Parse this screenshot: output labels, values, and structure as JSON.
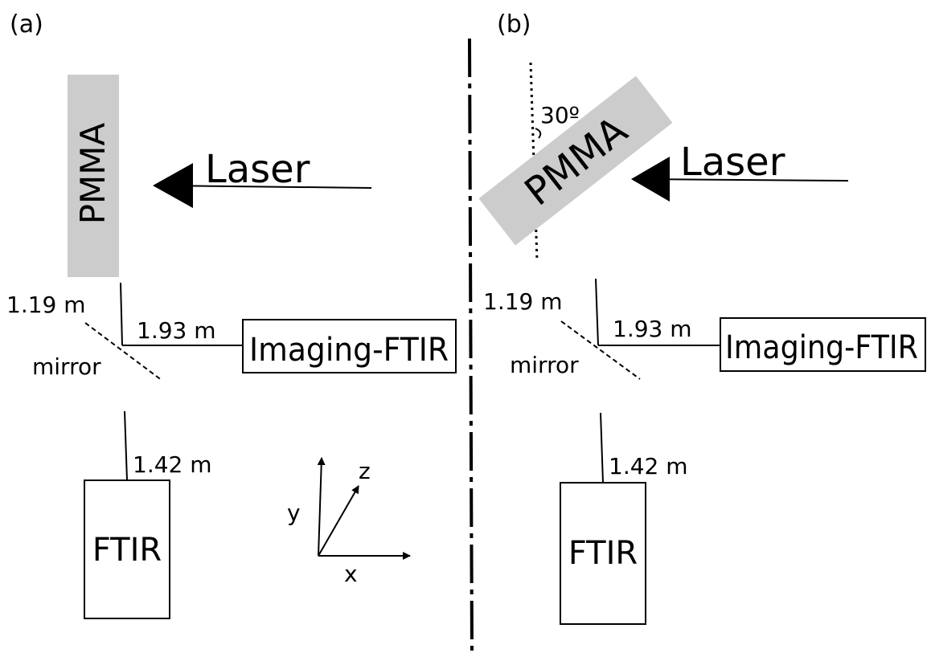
{
  "panels": {
    "a": {
      "label": "(a)",
      "sample": "PMMA",
      "laser": "Laser",
      "dist_sample_mirror": "1.19 m",
      "dist_mirror_imaging": "1.93 m",
      "imaging": "Imaging-FTIR",
      "mirror": "mirror",
      "dist_mirror_ftir": "1.42 m",
      "ftir": "FTIR"
    },
    "b": {
      "label": "(b)",
      "sample": "PMMA",
      "angle": "30º",
      "laser": "Laser",
      "dist_sample_mirror": "1.19 m",
      "dist_mirror_imaging": "1.93 m",
      "imaging": "Imaging-FTIR",
      "mirror": "mirror",
      "dist_mirror_ftir": "1.42 m",
      "ftir": "FTIR"
    }
  },
  "axes": {
    "x": "x",
    "y": "y",
    "z": "z"
  }
}
